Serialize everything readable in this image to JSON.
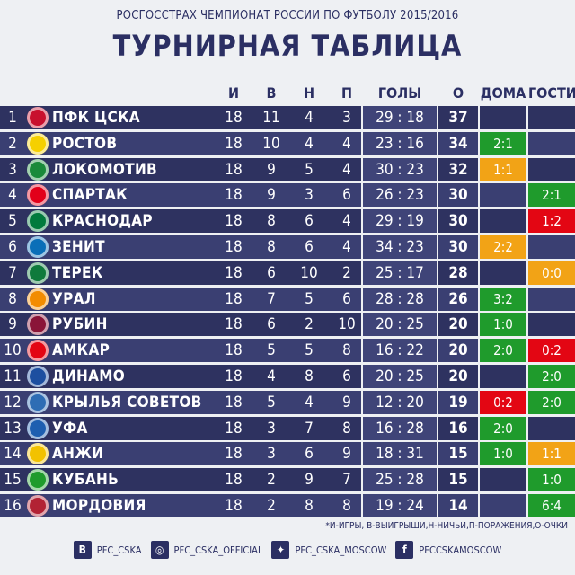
{
  "subtitle": "РОСГОССТРАХ ЧЕМПИОНАТ РОССИИ ПО ФУТБОЛУ 2015/2016",
  "title": "ТУРНИРНАЯ ТАБЛИЦА",
  "columns": {
    "games": "И",
    "wins": "В",
    "draws": "Н",
    "losses": "П",
    "goals": "ГОЛЫ",
    "points": "О",
    "home": "ДОМА",
    "away": "ГОСТИ"
  },
  "rows": [
    {
      "pos": "1",
      "team": "ПФК ЦСКА",
      "g": "18",
      "w": "11",
      "d": "4",
      "l": "3",
      "goals": "29 : 18",
      "pts": "37",
      "home": "",
      "home_color": "",
      "away": "",
      "away_color": "",
      "logo_color": "#c8102e"
    },
    {
      "pos": "2",
      "team": "РОСТОВ",
      "g": "18",
      "w": "10",
      "d": "4",
      "l": "4",
      "goals": "23 : 16",
      "pts": "34",
      "home": "2:1",
      "home_color": "green",
      "away": "",
      "away_color": "",
      "logo_color": "#f5d000"
    },
    {
      "pos": "3",
      "team": "ЛОКОМОТИВ",
      "g": "18",
      "w": "9",
      "d": "5",
      "l": "4",
      "goals": "30 : 23",
      "pts": "32",
      "home": "1:1",
      "home_color": "orange",
      "away": "",
      "away_color": "",
      "logo_color": "#1a8a3a"
    },
    {
      "pos": "4",
      "team": "СПАРТАК",
      "g": "18",
      "w": "9",
      "d": "3",
      "l": "6",
      "goals": "26 : 23",
      "pts": "30",
      "home": "",
      "home_color": "",
      "away": "2:1",
      "away_color": "green",
      "logo_color": "#e2001a"
    },
    {
      "pos": "5",
      "team": "КРАСНОДАР",
      "g": "18",
      "w": "8",
      "d": "6",
      "l": "4",
      "goals": "29 : 19",
      "pts": "30",
      "home": "",
      "home_color": "",
      "away": "1:2",
      "away_color": "red",
      "logo_color": "#007a3d"
    },
    {
      "pos": "6",
      "team": "ЗЕНИТ",
      "g": "18",
      "w": "8",
      "d": "6",
      "l": "4",
      "goals": "34 : 23",
      "pts": "30",
      "home": "2:2",
      "home_color": "orange",
      "away": "",
      "away_color": "",
      "logo_color": "#0a6fb8"
    },
    {
      "pos": "7",
      "team": "ТЕРЕК",
      "g": "18",
      "w": "6",
      "d": "10",
      "l": "2",
      "goals": "25 : 17",
      "pts": "28",
      "home": "",
      "home_color": "",
      "away": "0:0",
      "away_color": "orange",
      "logo_color": "#0f7a3c"
    },
    {
      "pos": "8",
      "team": "УРАЛ",
      "g": "18",
      "w": "7",
      "d": "5",
      "l": "6",
      "goals": "28 : 28",
      "pts": "26",
      "home": "3:2",
      "home_color": "green",
      "away": "",
      "away_color": "",
      "logo_color": "#f28c00"
    },
    {
      "pos": "9",
      "team": "РУБИН",
      "g": "18",
      "w": "6",
      "d": "2",
      "l": "10",
      "goals": "20 : 25",
      "pts": "20",
      "home": "1:0",
      "home_color": "green",
      "away": "",
      "away_color": "",
      "logo_color": "#8a1538"
    },
    {
      "pos": "10",
      "team": "АМКАР",
      "g": "18",
      "w": "5",
      "d": "5",
      "l": "8",
      "goals": "16 : 22",
      "pts": "20",
      "home": "2:0",
      "home_color": "green",
      "away": "0:2",
      "away_color": "red",
      "logo_color": "#e30613"
    },
    {
      "pos": "11",
      "team": "ДИНАМО",
      "g": "18",
      "w": "4",
      "d": "8",
      "l": "6",
      "goals": "20 : 25",
      "pts": "20",
      "home": "",
      "home_color": "",
      "away": "2:0",
      "away_color": "green",
      "logo_color": "#1d4fa0"
    },
    {
      "pos": "12",
      "team": "КРЫЛЬЯ СОВЕТОВ",
      "g": "18",
      "w": "5",
      "d": "4",
      "l": "9",
      "goals": "12 : 20",
      "pts": "19",
      "home": "0:2",
      "home_color": "red",
      "away": "2:0",
      "away_color": "green",
      "logo_color": "#2e6db4"
    },
    {
      "pos": "13",
      "team": "УФА",
      "g": "18",
      "w": "3",
      "d": "7",
      "l": "8",
      "goals": "16 : 28",
      "pts": "16",
      "home": "2:0",
      "home_color": "green",
      "away": "",
      "away_color": "",
      "logo_color": "#1d5fb0"
    },
    {
      "pos": "14",
      "team": "АНЖИ",
      "g": "18",
      "w": "3",
      "d": "6",
      "l": "9",
      "goals": "18 : 31",
      "pts": "15",
      "home": "1:0",
      "home_color": "green",
      "away": "1:1",
      "away_color": "orange",
      "logo_color": "#f2c200"
    },
    {
      "pos": "15",
      "team": "КУБАНЬ",
      "g": "18",
      "w": "2",
      "d": "9",
      "l": "7",
      "goals": "25 : 28",
      "pts": "15",
      "home": "",
      "home_color": "",
      "away": "1:0",
      "away_color": "green",
      "logo_color": "#1f9b2c"
    },
    {
      "pos": "16",
      "team": "МОРДОВИЯ",
      "g": "18",
      "w": "2",
      "d": "8",
      "l": "8",
      "goals": "19 : 24",
      "pts": "14",
      "home": "",
      "home_color": "",
      "away": "6:4",
      "away_color": "green",
      "logo_color": "#b22234"
    }
  ],
  "legend": "*И-ИГРЫ, В-ВЫИГРЫШИ,Н-НИЧЬИ,П-ПОРАЖЕНИЯ,О-ОЧКИ",
  "social": [
    {
      "icon": "vk-icon",
      "glyph": "В",
      "label": "PFC_CSKA"
    },
    {
      "icon": "instagram-icon",
      "glyph": "◎",
      "label": "PFC_CSKA_OFFICIAL"
    },
    {
      "icon": "twitter-icon",
      "glyph": "✦",
      "label": "PFC_CSKA_MOSCOW"
    },
    {
      "icon": "facebook-icon",
      "glyph": "f",
      "label": "PFCCSKAMOSCOW"
    }
  ]
}
